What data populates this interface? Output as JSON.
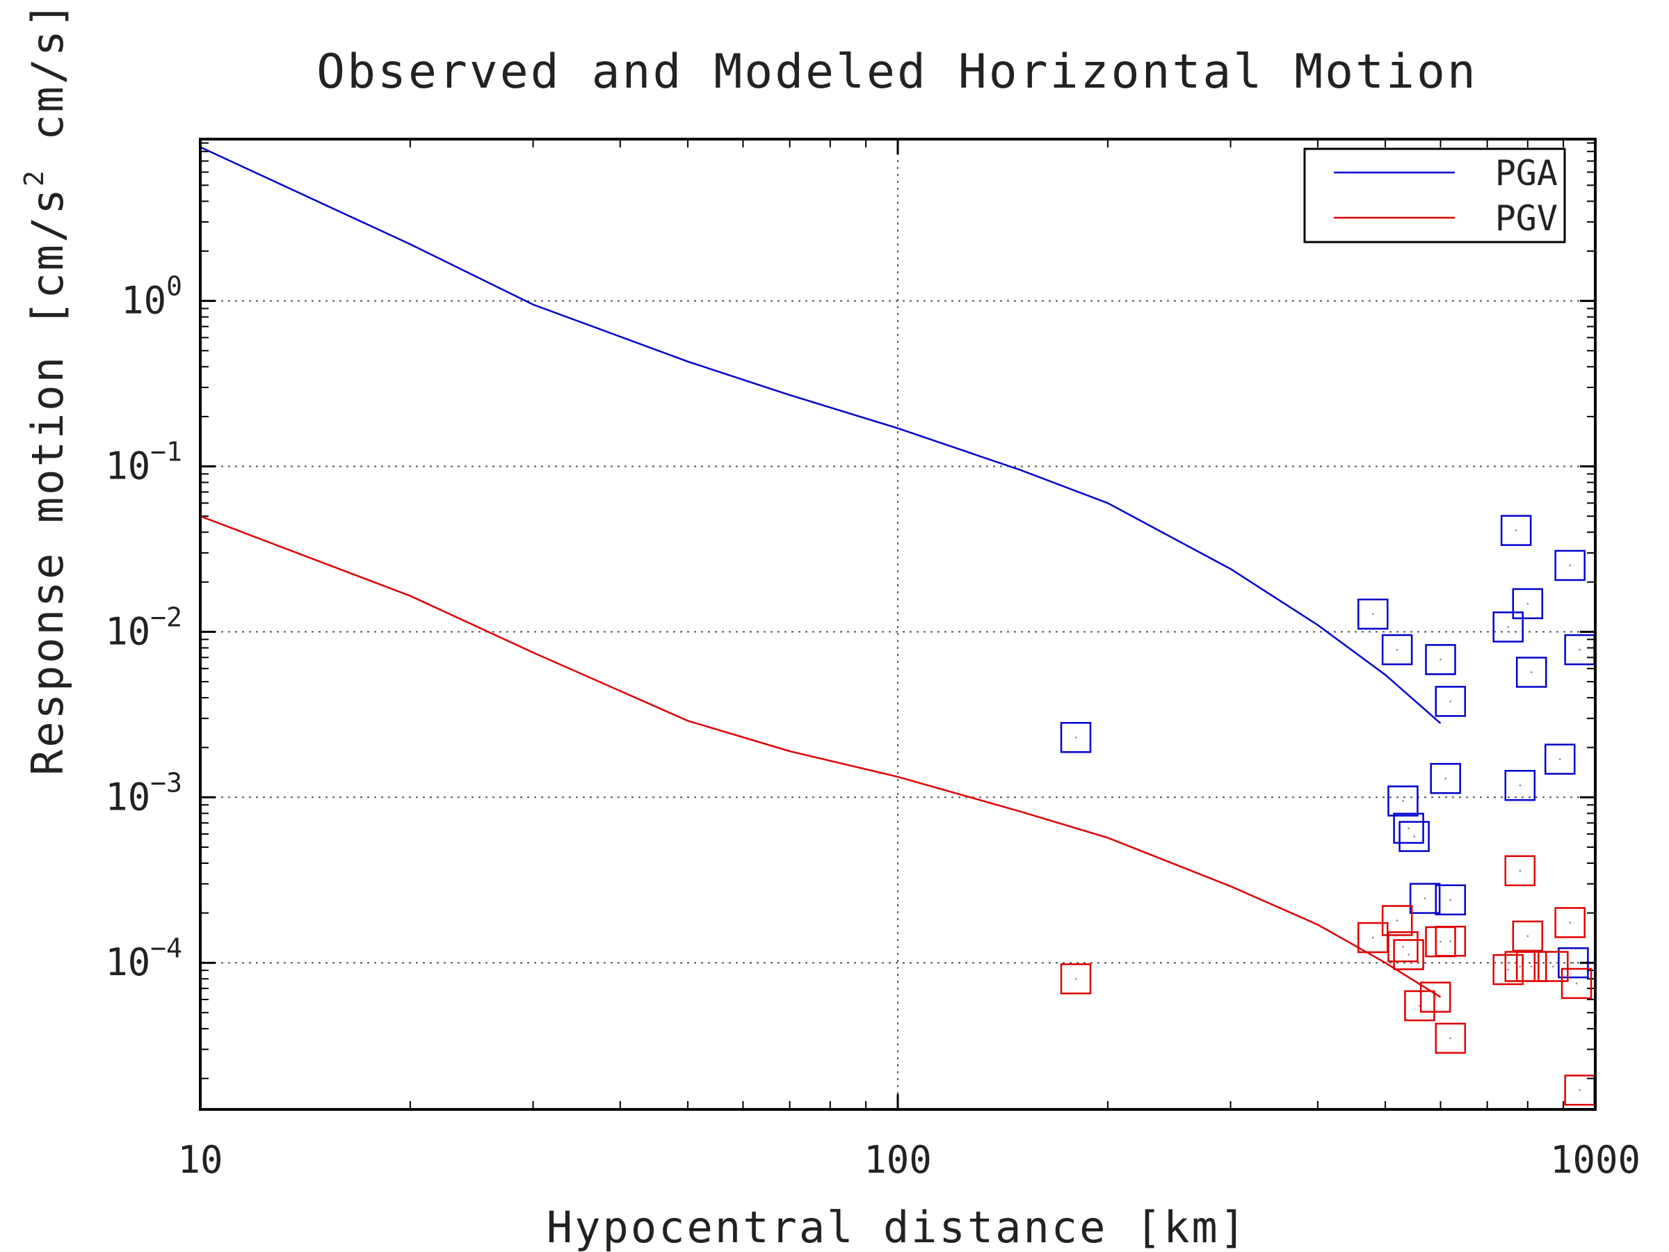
{
  "chart_data": {
    "type": "scatter",
    "title": "Observed and Modeled Horizontal Motion",
    "xlabel": "Hypocentral distance [km]",
    "ylabel": "Response motion  [cm/s²  cm/s]",
    "ylabel_parts": {
      "before": "Response motion  [cm/s",
      "sup": "2",
      "after": "  cm/s]"
    },
    "xscale": "log",
    "yscale": "log",
    "xlim": [
      10,
      1000
    ],
    "ylim": [
      1.3e-05,
      9.5
    ],
    "x_tick_labels": [
      "10",
      "100",
      "1000"
    ],
    "x_tick_values": [
      10,
      100,
      1000
    ],
    "y_tick_values": [
      1,
      0.1,
      0.01,
      0.001,
      0.0001
    ],
    "y_tick_labels": [
      {
        "base": "10",
        "exp": "0"
      },
      {
        "base": "10",
        "exp": "−1"
      },
      {
        "base": "10",
        "exp": "−2"
      },
      {
        "base": "10",
        "exp": "−3"
      },
      {
        "base": "10",
        "exp": "−4"
      }
    ],
    "grid": true,
    "legend_position": "top-right",
    "series": [
      {
        "name": "PGA",
        "color": "#0000cc",
        "type": "line",
        "x": [
          10,
          20,
          30,
          50,
          70,
          100,
          150,
          200,
          300,
          400,
          500,
          600
        ],
        "y": [
          8.5,
          2.2,
          0.95,
          0.43,
          0.27,
          0.17,
          0.095,
          0.06,
          0.024,
          0.011,
          0.0055,
          0.0028
        ]
      },
      {
        "name": "PGV",
        "color": "#dd0000",
        "type": "line",
        "x": [
          10,
          20,
          30,
          50,
          70,
          100,
          150,
          200,
          300,
          400,
          500,
          600
        ],
        "y": [
          0.05,
          0.0165,
          0.0075,
          0.0029,
          0.0019,
          0.00133,
          0.00082,
          0.00057,
          0.00029,
          0.00017,
          0.0001,
          6.2e-05
        ]
      },
      {
        "name": "",
        "color": "#0000cc",
        "type": "scatter",
        "marker": "square",
        "x": [
          180,
          480,
          520,
          530,
          540,
          600,
          620,
          610,
          620,
          750,
          770,
          800,
          810,
          890,
          920,
          950,
          780,
          570,
          550,
          930
        ],
        "y": [
          0.0023,
          0.0128,
          0.0078,
          0.00095,
          0.00065,
          0.0068,
          0.0038,
          0.0013,
          0.00024,
          0.0107,
          0.041,
          0.0148,
          0.0057,
          0.0017,
          0.0252,
          0.0078,
          0.00118,
          0.000245,
          0.00058,
          0.0001
        ]
      },
      {
        "name": "",
        "color": "#dd0000",
        "type": "scatter",
        "marker": "square",
        "x": [
          180,
          480,
          520,
          530,
          540,
          600,
          560,
          590,
          620,
          620,
          750,
          780,
          800,
          810,
          870,
          920,
          940,
          950,
          780
        ],
        "y": [
          8e-05,
          0.000142,
          0.00018,
          0.000125,
          0.000112,
          0.000134,
          5.5e-05,
          6.2e-05,
          3.5e-05,
          0.000135,
          9.1e-05,
          9.5e-05,
          0.000145,
          9.5e-05,
          9.5e-05,
          0.000175,
          7.5e-05,
          1.7e-05,
          0.00036
        ]
      }
    ]
  }
}
